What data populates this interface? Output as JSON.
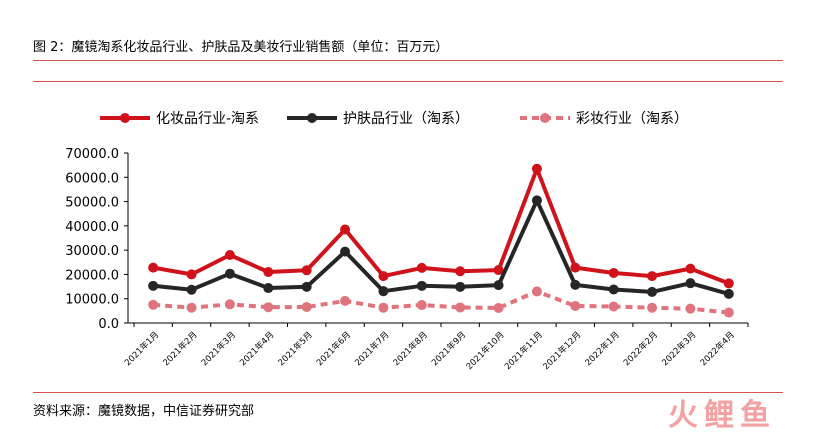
{
  "figure": {
    "title": "图 2：魔镜淘系化妆品行业、护肤品及美妆行业销售额（单位：百万元）",
    "source": "资料来源：魔镜数据，中信证券研究部",
    "watermark": "火鲤鱼"
  },
  "chart_data": {
    "type": "line",
    "categories": [
      "2021年1月",
      "2021年2月",
      "2021年3月",
      "2021年4月",
      "2021年5月",
      "2021年6月",
      "2021年7月",
      "2021年8月",
      "2021年9月",
      "2021年10月",
      "2021年11月",
      "2021年12月",
      "2022年1月",
      "2022年2月",
      "2022年3月",
      "2022年4月"
    ],
    "series": [
      {
        "name": "化妆品行业-淘系",
        "color": "#d0121b",
        "style": "solid",
        "values": [
          22800,
          20000,
          28000,
          21000,
          21700,
          38500,
          19300,
          22700,
          21300,
          21800,
          63500,
          22800,
          20600,
          19300,
          22400,
          16300
        ]
      },
      {
        "name": "护肤品行业（淘系）",
        "color": "#262626",
        "style": "solid",
        "values": [
          15300,
          13700,
          20300,
          14400,
          14900,
          29400,
          13100,
          15300,
          14900,
          15600,
          50500,
          15700,
          13800,
          12800,
          16400,
          12000
        ]
      },
      {
        "name": "彩妆行业（淘系）",
        "color": "#e0747c",
        "style": "dashed",
        "values": [
          7500,
          6300,
          7700,
          6500,
          6600,
          9100,
          6300,
          7400,
          6400,
          6200,
          13000,
          7000,
          6800,
          6300,
          5900,
          4300
        ]
      }
    ],
    "ylim": [
      0,
      70000
    ],
    "yticks": [
      "70000.0",
      "60000.0",
      "50000.0",
      "40000.0",
      "30000.0",
      "20000.0",
      "10000.0",
      "0.0"
    ],
    "ytick_values": [
      70000,
      60000,
      50000,
      40000,
      30000,
      20000,
      10000,
      0
    ],
    "legend": "top",
    "grid": false
  }
}
